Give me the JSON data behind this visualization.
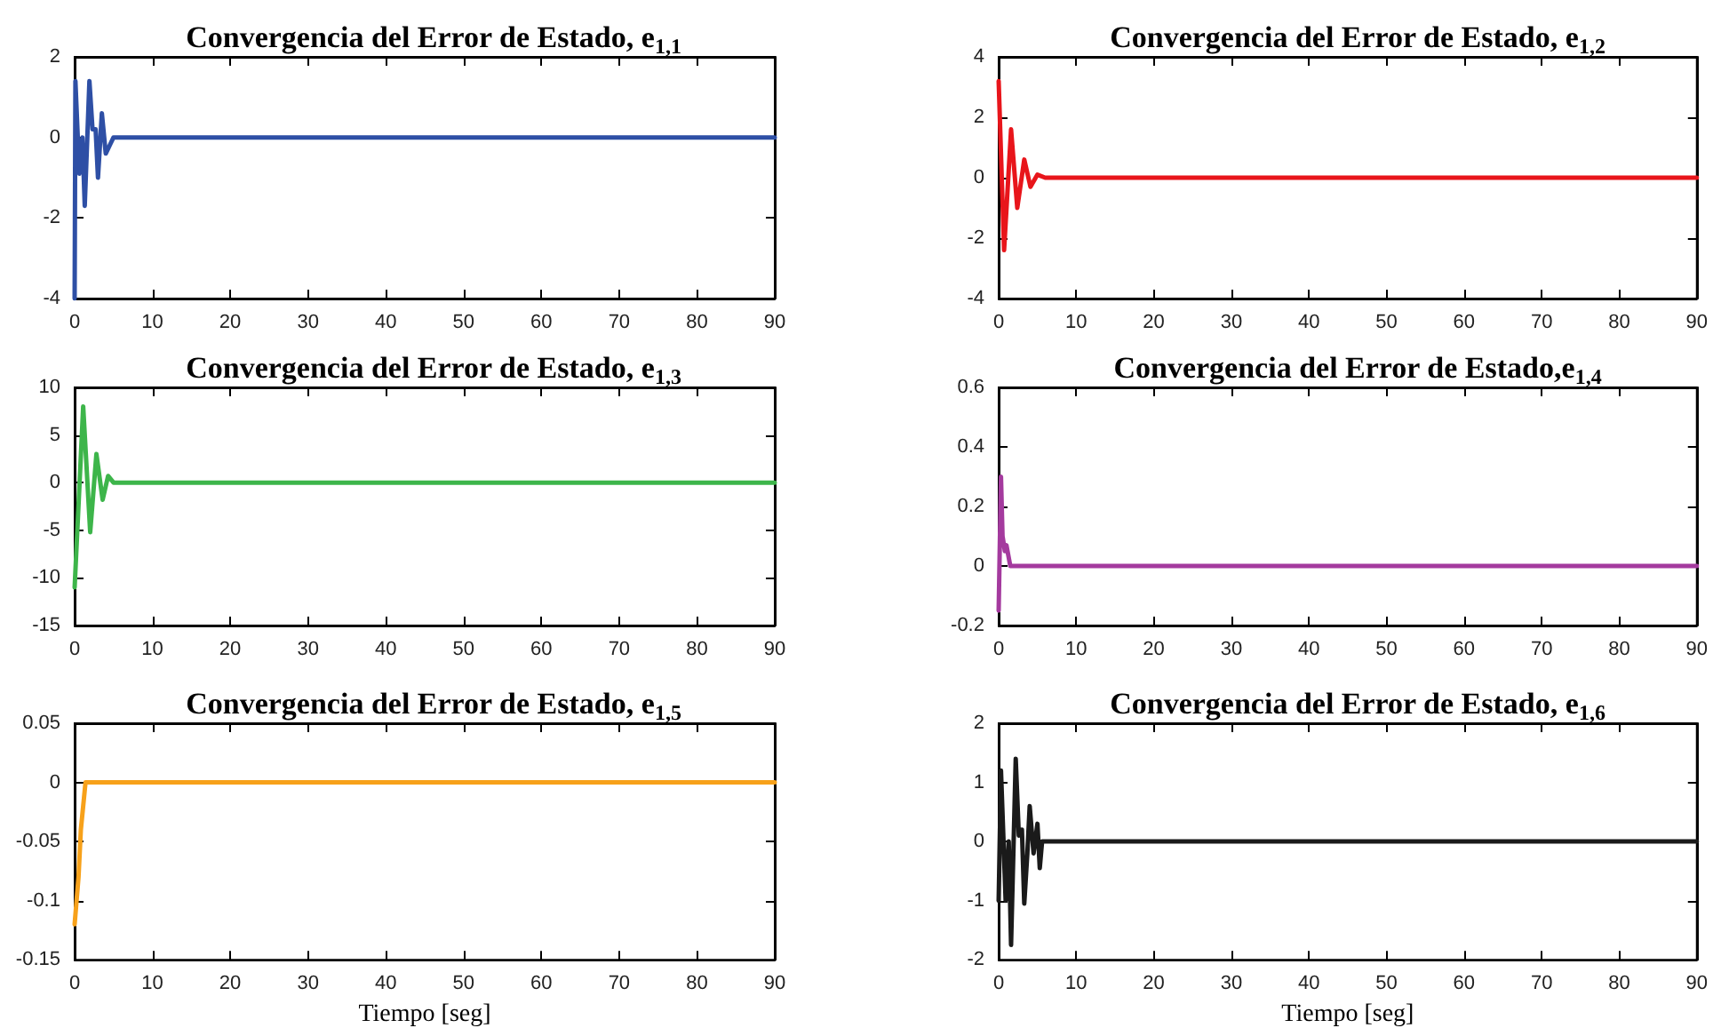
{
  "chart_data": [
    {
      "type": "line",
      "title": "Convergencia del Error de Estado, e$_{1,1}$",
      "x": [
        0,
        0.1,
        0.6,
        1.0,
        1.3,
        1.9,
        2.3,
        2.7,
        3.0,
        3.5,
        4.0,
        4.5,
        5.0,
        90
      ],
      "series": [
        {
          "color": "#2e4fa5",
          "values": [
            -4,
            1.4,
            -0.9,
            0,
            -1.7,
            1.4,
            0.2,
            0.2,
            -1.0,
            0.6,
            -0.4,
            -0.2,
            0,
            0
          ]
        }
      ],
      "xlim": [
        0,
        90
      ],
      "xticks": [
        0,
        10,
        20,
        30,
        40,
        50,
        60,
        70,
        80,
        90
      ],
      "ylim": [
        -4,
        2
      ],
      "yticks": [
        -4,
        -2,
        0,
        2
      ],
      "grid": false,
      "marker": "none",
      "line_style": "solid"
    },
    {
      "type": "line",
      "title": "Convergencia del Error de Estado, e$_{1,2}$",
      "x": [
        0,
        0.7,
        1.6,
        2.4,
        3.3,
        4.1,
        5.0,
        6,
        90
      ],
      "series": [
        {
          "color": "#e8151b",
          "values": [
            3.2,
            -2.4,
            1.6,
            -1.0,
            0.6,
            -0.3,
            0.1,
            0,
            0
          ]
        }
      ],
      "xlim": [
        0,
        90
      ],
      "xticks": [
        0,
        10,
        20,
        30,
        40,
        50,
        60,
        70,
        80,
        90
      ],
      "ylim": [
        -4,
        4
      ],
      "yticks": [
        -4,
        -2,
        0,
        2,
        4
      ],
      "grid": false,
      "marker": "none",
      "line_style": "solid"
    },
    {
      "type": "line",
      "title": "Convergencia del Error de Estado, e$_{1,3}$",
      "x": [
        0,
        1.1,
        2.0,
        2.8,
        3.6,
        4.3,
        5,
        90
      ],
      "series": [
        {
          "color": "#3db54a",
          "values": [
            -11,
            8,
            -5.2,
            3,
            -1.8,
            0.7,
            0,
            0
          ]
        }
      ],
      "xlim": [
        0,
        90
      ],
      "xticks": [
        0,
        10,
        20,
        30,
        40,
        50,
        60,
        70,
        80,
        90
      ],
      "ylim": [
        -15,
        10
      ],
      "yticks": [
        -15,
        -10,
        -5,
        0,
        5,
        10
      ],
      "grid": false,
      "marker": "none",
      "line_style": "solid"
    },
    {
      "type": "line",
      "title": "Convergencia del Error de Estado,e$_{1,4}$",
      "x": [
        0,
        0.3,
        0.5,
        0.8,
        1.0,
        1.5,
        90
      ],
      "series": [
        {
          "color": "#a43a9e",
          "values": [
            -0.15,
            0.3,
            0.1,
            0.05,
            0.07,
            0,
            0
          ]
        }
      ],
      "xlim": [
        0,
        90
      ],
      "xticks": [
        0,
        10,
        20,
        30,
        40,
        50,
        60,
        70,
        80,
        90
      ],
      "ylim": [
        -0.2,
        0.6
      ],
      "yticks": [
        -0.2,
        0,
        0.2,
        0.4,
        0.6
      ],
      "grid": false,
      "marker": "none",
      "line_style": "solid"
    },
    {
      "type": "line",
      "title": "Convergencia del Error de Estado, e$_{1,5}$",
      "xlabel": "Tiempo [seg]",
      "x": [
        0,
        0.5,
        0.8,
        1.4,
        90
      ],
      "series": [
        {
          "color": "#f7a11a",
          "values": [
            -0.12,
            -0.08,
            -0.04,
            0,
            0
          ]
        }
      ],
      "xlim": [
        0,
        90
      ],
      "xticks": [
        0,
        10,
        20,
        30,
        40,
        50,
        60,
        70,
        80,
        90
      ],
      "ylim": [
        -0.15,
        0.05
      ],
      "yticks": [
        -0.15,
        -0.1,
        -0.05,
        0,
        0.05
      ],
      "grid": false,
      "marker": "none",
      "line_style": "solid"
    },
    {
      "type": "line",
      "title": "Convergencia del Error de Estado, e$_{1,6}$",
      "xlabel": "Tiempo [seg]",
      "x": [
        0,
        0.3,
        0.9,
        1.3,
        1.6,
        2.2,
        2.6,
        3.0,
        3.3,
        3.7,
        4.0,
        4.5,
        5.0,
        5.3,
        5.6,
        90
      ],
      "series": [
        {
          "color": "#1a1a1a",
          "values": [
            -1,
            1.2,
            -1,
            0,
            -1.75,
            1.4,
            0.1,
            0.2,
            -1.05,
            -0.2,
            0.6,
            -0.2,
            0.3,
            -0.45,
            0,
            0
          ]
        }
      ],
      "xlim": [
        0,
        90
      ],
      "xticks": [
        0,
        10,
        20,
        30,
        40,
        50,
        60,
        70,
        80,
        90
      ],
      "ylim": [
        -2,
        2
      ],
      "yticks": [
        -2,
        -1,
        0,
        1,
        2
      ],
      "grid": false,
      "marker": "none",
      "line_style": "solid"
    }
  ]
}
